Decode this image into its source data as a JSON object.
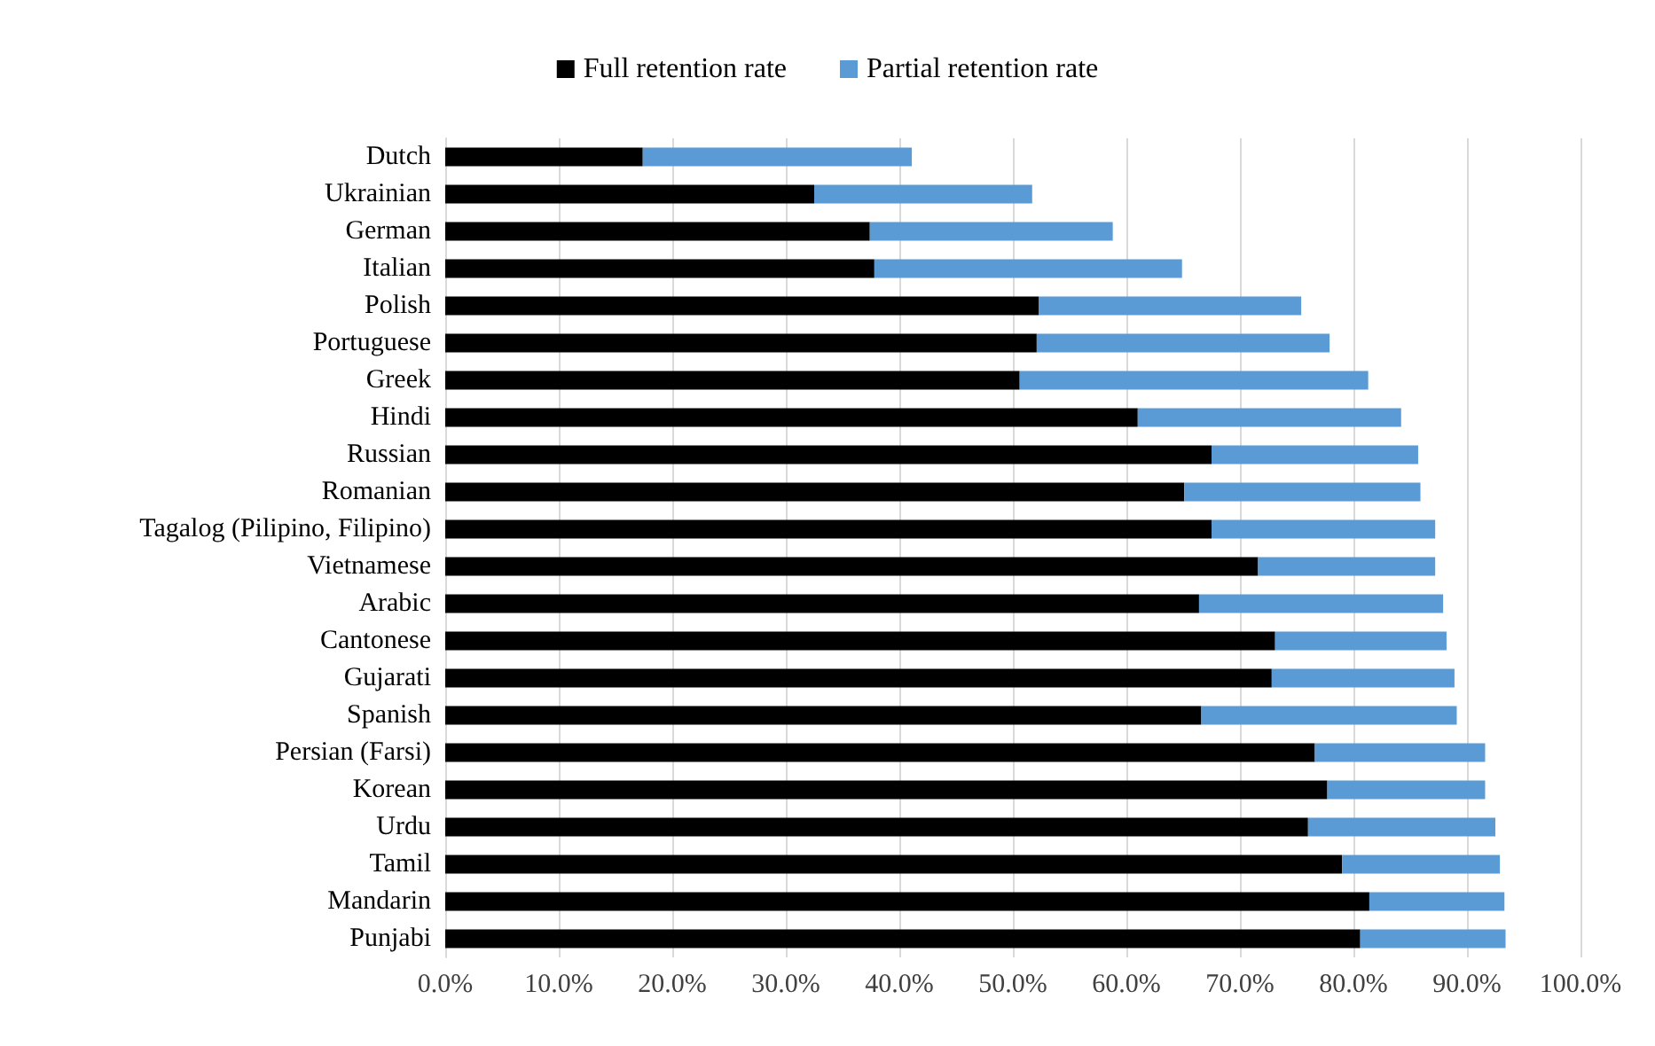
{
  "chart_data": {
    "type": "bar",
    "orientation": "horizontal",
    "stacked": true,
    "legend": "top",
    "grid": "x",
    "categories": [
      "Dutch",
      "Ukrainian",
      "German",
      "Italian",
      "Polish",
      "Portuguese",
      "Greek",
      "Hindi",
      "Russian",
      "Romanian",
      "Tagalog (Pilipino, Filipino)",
      "Vietnamese",
      "Arabic",
      "Cantonese",
      "Gujarati",
      "Spanish",
      "Persian (Farsi)",
      "Korean",
      "Urdu",
      "Tamil",
      "Mandarin",
      "Punjabi"
    ],
    "series": [
      {
        "name": "Full retention rate",
        "color": "#000000",
        "values": [
          17.4,
          32.5,
          37.4,
          37.8,
          52.3,
          52.1,
          50.6,
          61.0,
          67.5,
          65.1,
          67.5,
          71.6,
          66.4,
          73.1,
          72.8,
          66.6,
          76.6,
          77.7,
          76.0,
          79.0,
          81.4,
          80.6
        ]
      },
      {
        "name": "Partial retention rate",
        "color": "#5b9bd5",
        "values": [
          23.7,
          19.2,
          21.4,
          27.1,
          23.1,
          25.8,
          30.7,
          23.2,
          18.2,
          20.8,
          19.7,
          15.6,
          21.5,
          15.1,
          16.1,
          22.5,
          15.0,
          13.9,
          16.5,
          13.9,
          11.9,
          12.8
        ]
      }
    ],
    "xlim": [
      0,
      100
    ],
    "xticks": [
      {
        "value": 0,
        "label": "0.0%"
      },
      {
        "value": 10,
        "label": "10.0%"
      },
      {
        "value": 20,
        "label": "20.0%"
      },
      {
        "value": 30,
        "label": "30.0%"
      },
      {
        "value": 40,
        "label": "40.0%"
      },
      {
        "value": 50,
        "label": "50.0%"
      },
      {
        "value": 60,
        "label": "60.0%"
      },
      {
        "value": 70,
        "label": "70.0%"
      },
      {
        "value": 80,
        "label": "80.0%"
      },
      {
        "value": 90,
        "label": "90.0%"
      },
      {
        "value": 100,
        "label": "100.0%"
      }
    ]
  }
}
